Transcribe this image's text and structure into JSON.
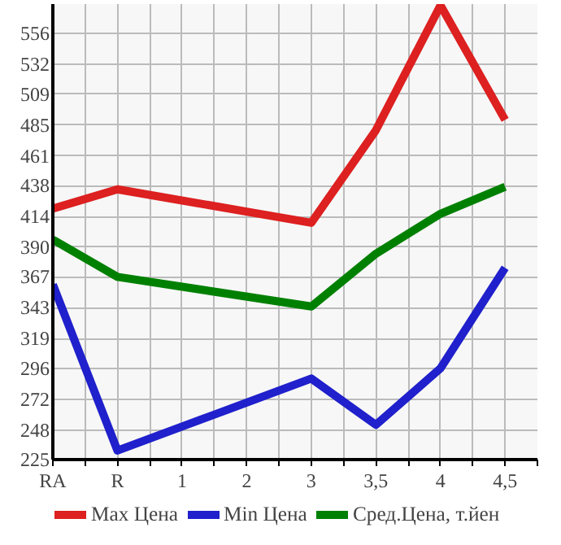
{
  "chart_data": {
    "type": "line",
    "categories": [
      "RA",
      "R",
      "1",
      "2",
      "3",
      "3,5",
      "4",
      "4,5"
    ],
    "series": [
      {
        "name": "Max Цена",
        "color": "#dd2020",
        "values": [
          420,
          435,
          null,
          null,
          409,
          481,
          578,
          489
        ]
      },
      {
        "name": "Min Цена",
        "color": "#2020cc",
        "values": [
          361,
          232,
          null,
          null,
          288,
          252,
          296,
          374
        ]
      },
      {
        "name": "Сред.Цена, т.йен",
        "color": "#008000",
        "values": [
          396,
          367,
          null,
          null,
          344,
          385,
          416,
          437
        ]
      }
    ],
    "ylim": [
      225,
      579
    ],
    "yticks": [
      225,
      248,
      272,
      296,
      319,
      343,
      367,
      390,
      414,
      438,
      461,
      485,
      509,
      532,
      556
    ],
    "grid": true,
    "legend": "bottom",
    "marker": "none",
    "line_style": "solid"
  }
}
